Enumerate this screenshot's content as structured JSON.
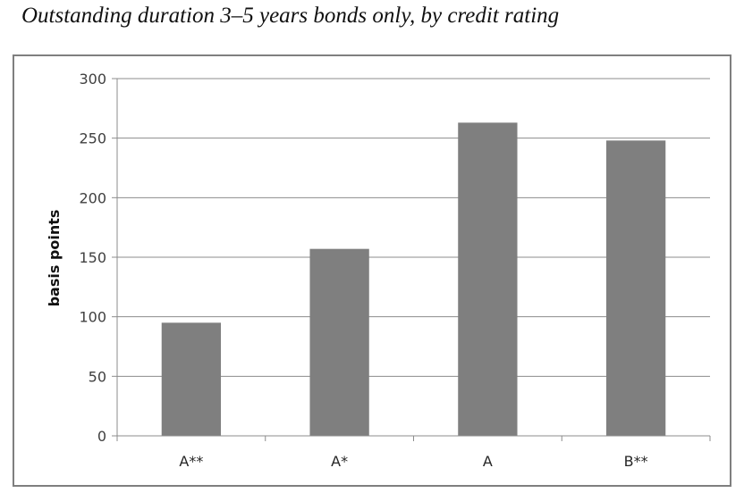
{
  "caption": "Outstanding duration 3–5 years bonds only, by credit rating",
  "chart_data": {
    "type": "bar",
    "title": "",
    "xlabel": "",
    "ylabel": "basis points",
    "categories": [
      "A**",
      "A*",
      "A",
      "B**"
    ],
    "values": [
      95,
      157,
      263,
      248
    ],
    "ylim": [
      0,
      300
    ],
    "yticks": [
      0,
      50,
      100,
      150,
      200,
      250,
      300
    ],
    "grid": true,
    "legend": "none",
    "bar_color": "#7f7f7f",
    "grid_color": "#8c8c8c"
  }
}
